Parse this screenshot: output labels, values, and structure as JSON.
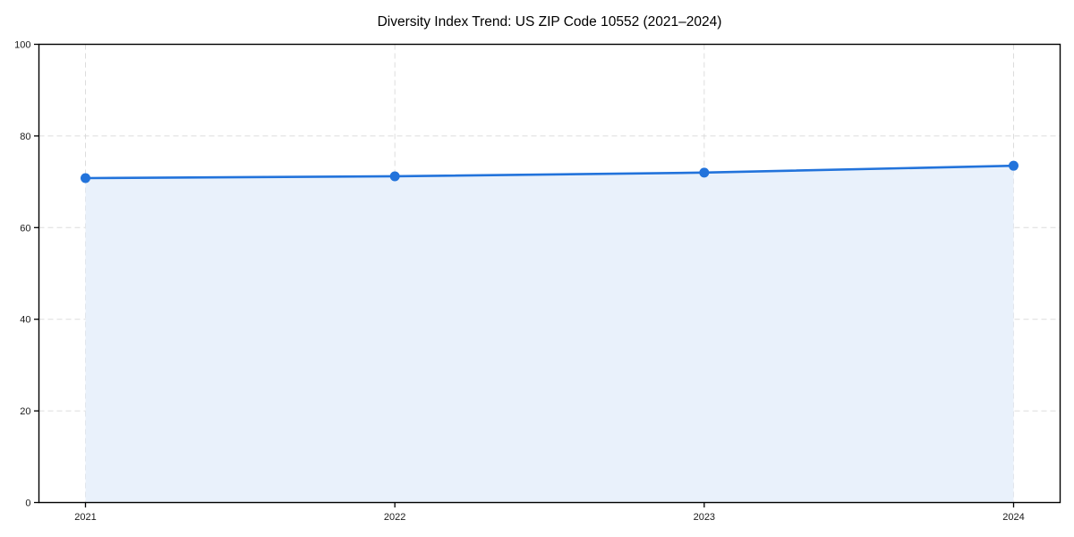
{
  "chart_data": {
    "type": "area",
    "title": "Diversity Index Trend: US ZIP Code 10552 (2021–2024)",
    "categories": [
      "2021",
      "2022",
      "2023",
      "2024"
    ],
    "values": [
      70.8,
      71.2,
      72.0,
      73.5
    ],
    "xlabel": "",
    "ylabel": "",
    "ylim": [
      0,
      100
    ],
    "yticks": [
      0,
      20,
      40,
      60,
      80,
      100
    ],
    "grid": "dashed-both-axes",
    "legend_position": "none",
    "colors": {
      "line": "#2273db",
      "marker": "#2273db",
      "area_fill": "#e9f1fb",
      "grid": "#d8d8d8",
      "axis": "#000000",
      "background": "#ffffff",
      "text": "#1a1a1a"
    }
  }
}
